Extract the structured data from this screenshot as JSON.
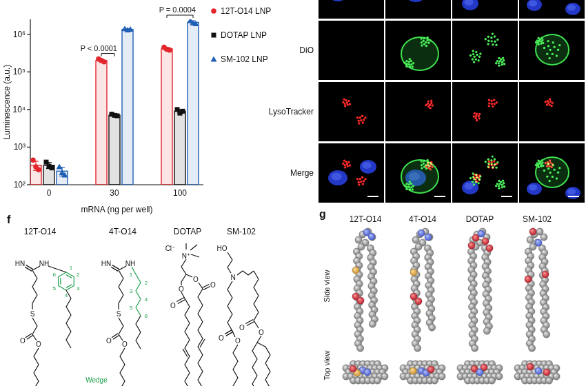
{
  "chart_data": {
    "type": "bar",
    "y_label": "Luminescence (a.u.)",
    "x_label": "mRNA (ng per well)",
    "categories": [
      "0",
      "30",
      "100"
    ],
    "log": "y",
    "grid": false,
    "legend": "right",
    "ylim": [
      100,
      2500000
    ],
    "yticks": [
      {
        "value": 100,
        "label": "10²"
      },
      {
        "value": 1000,
        "label": "10³"
      },
      {
        "value": 10000,
        "label": "10⁴"
      },
      {
        "value": 100000,
        "label": "10⁵"
      },
      {
        "value": 1000000,
        "label": "10⁶"
      }
    ],
    "series": [
      {
        "name": "12T-O14 LNP",
        "color": "#e3262d",
        "marker": "circle",
        "values": [
          330,
          200000,
          410000
        ],
        "errors": [
          90,
          15000,
          35000
        ],
        "points": [
          [
            450,
            300,
            250
          ],
          [
            220000,
            200000,
            185000
          ],
          [
            450000,
            400000,
            380000
          ]
        ]
      },
      {
        "name": "DOTAP LNP",
        "color": "#111111",
        "marker": "square",
        "values": [
          330,
          7100,
          9000
        ],
        "errors": [
          60,
          350,
          1000
        ],
        "points": [
          [
            400,
            310,
            280
          ],
          [
            7500,
            7000,
            6800
          ],
          [
            10000,
            8000,
            9000
          ]
        ]
      },
      {
        "name": "SM-102 LNP",
        "color": "#1f5fb4",
        "marker": "triangle",
        "values": [
          230,
          1350000,
          2070000
        ],
        "errors": [
          60,
          50000,
          200000
        ],
        "points": [
          [
            300,
            210,
            180
          ],
          [
            1400000,
            1300000,
            1350000
          ],
          [
            2300000,
            2000000,
            1900000
          ]
        ]
      }
    ],
    "annotations": [
      {
        "text": "P < 0.0001",
        "category": 1,
        "series": [
          0,
          1
        ]
      },
      {
        "text": "P = 0.0004",
        "category": 2,
        "series": [
          0,
          2
        ]
      }
    ]
  },
  "microscopy": {
    "channels": [
      "DiO",
      "LysoTracker",
      "Merge"
    ]
  },
  "panel_f": {
    "label": "f",
    "molecules": [
      {
        "name": "12T-O14",
        "atoms": [
          "HN",
          "NH",
          "S",
          "O",
          "O"
        ],
        "ring_numbers": [
          "1",
          "2",
          "3",
          "4",
          "5",
          "6"
        ]
      },
      {
        "name": "4T-O14",
        "atoms": [
          "HN",
          "NH",
          "S",
          "O",
          "O"
        ],
        "chain_numbers": [
          "1",
          "2",
          "3",
          "4",
          "5",
          "6"
        ]
      },
      {
        "name": "DOTAP",
        "atoms": [
          "Cl⁻",
          "N⁺",
          "O",
          "O",
          "O",
          "O"
        ]
      },
      {
        "name": "SM-102",
        "atoms": [
          "HO",
          "N",
          "O",
          "O",
          "O",
          "O"
        ]
      }
    ],
    "footnote": "Wedge"
  },
  "panel_g": {
    "label": "g",
    "molecules": [
      "12T-O14",
      "4T-O14",
      "DOTAP",
      "SM-102"
    ],
    "views": [
      "Side view",
      "Top view"
    ]
  }
}
